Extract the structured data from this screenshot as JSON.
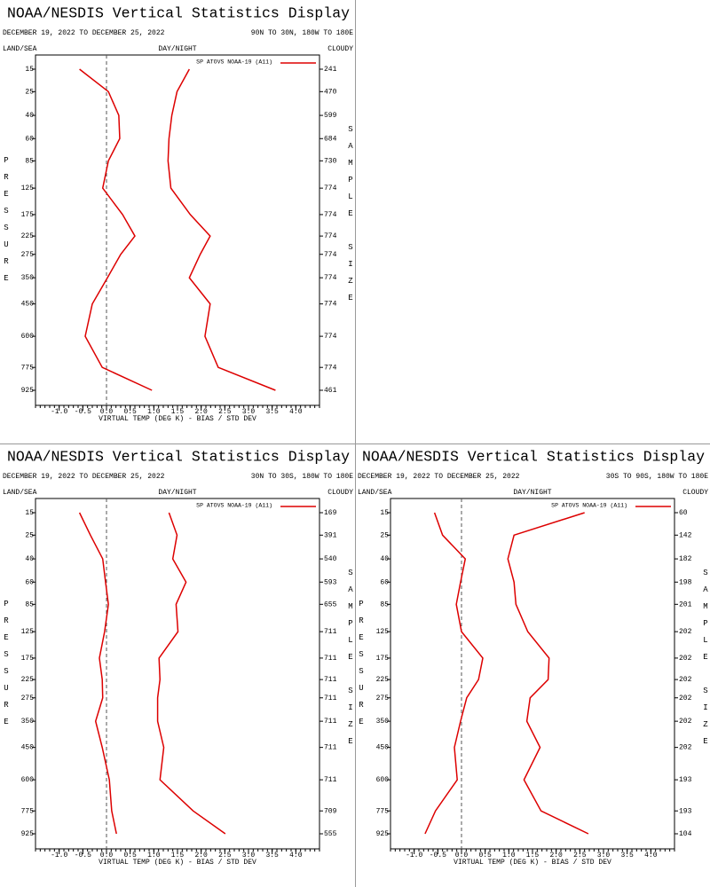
{
  "chart_data": [
    {
      "type": "line",
      "title": "NOAA/NESDIS Vertical Statistics Display",
      "date_range": "DECEMBER 19, 2022 TO DECEMBER 25, 2022",
      "region": "90N TO 30N, 180W TO 180E",
      "headers": [
        "LAND/SEA",
        "DAY/NIGHT",
        "CLOUDY"
      ],
      "y_label": "PRESSURE",
      "y2_label": "SAMPLE SIZE",
      "x_label": "VIRTUAL TEMP (DEG K) - BIAS / STD DEV",
      "levels": [
        15,
        25,
        40,
        60,
        85,
        125,
        175,
        225,
        275,
        350,
        450,
        600,
        775,
        925
      ],
      "sample_size": [
        241,
        470,
        599,
        684,
        730,
        774,
        774,
        774,
        774,
        774,
        774,
        774,
        774,
        461
      ],
      "series": [
        {
          "name": "SP ATOVS NOAA-19 (A11)",
          "color": "#dd0000",
          "bias": [
            -0.57,
            0.04,
            0.26,
            0.28,
            0.04,
            -0.08,
            0.34,
            0.6,
            0.3,
            0.02,
            -0.3,
            -0.45,
            -0.09,
            0.96
          ],
          "std_dev": [
            1.75,
            1.49,
            1.38,
            1.32,
            1.3,
            1.36,
            1.77,
            2.19,
            1.98,
            1.75,
            2.19,
            2.08,
            2.36,
            3.57
          ]
        }
      ],
      "xlim": [
        -1.5,
        4.5
      ],
      "xticks": [
        {
          "value": -1,
          "label": "-1.0"
        },
        -0.5,
        {
          "value": 0,
          "label": "0.0"
        },
        0.5,
        {
          "value": 1,
          "label": "1.0"
        },
        1.5,
        {
          "value": 2,
          "label": "2.0"
        },
        2.5,
        {
          "value": 3,
          "label": "3.0"
        },
        3.5,
        {
          "value": 4,
          "label": "4.0"
        }
      ]
    },
    {
      "type": "line",
      "title": "NOAA/NESDIS Vertical Statistics Display",
      "date_range": "DECEMBER 19, 2022 TO DECEMBER 25, 2022",
      "region": "30N TO 30S, 180W TO 180E",
      "headers": [
        "LAND/SEA",
        "DAY/NIGHT",
        "CLOUDY"
      ],
      "y_label": "PRESSURE",
      "y2_label": "SAMPLE SIZE",
      "x_label": "VIRTUAL TEMP (DEG K) - BIAS / STD DEV",
      "levels": [
        15,
        25,
        40,
        60,
        85,
        125,
        175,
        225,
        275,
        350,
        450,
        600,
        775,
        925
      ],
      "sample_size": [
        169,
        391,
        540,
        593,
        655,
        711,
        711,
        711,
        711,
        711,
        711,
        711,
        709,
        555
      ],
      "series": [
        {
          "name": "SP ATOVS NOAA-19 (A11)",
          "color": "#dd0000",
          "bias": [
            -0.57,
            -0.34,
            -0.08,
            -0.02,
            0.04,
            -0.04,
            -0.15,
            -0.09,
            -0.08,
            -0.23,
            -0.09,
            0.06,
            0.11,
            0.21
          ],
          "std_dev": [
            1.32,
            1.49,
            1.4,
            1.68,
            1.47,
            1.51,
            1.11,
            1.13,
            1.08,
            1.08,
            1.21,
            1.13,
            1.83,
            2.51
          ]
        }
      ],
      "xlim": [
        -1.5,
        4.5
      ],
      "xticks": [
        {
          "value": -1,
          "label": "-1.0"
        },
        -0.5,
        {
          "value": 0,
          "label": "0.0"
        },
        0.5,
        {
          "value": 1,
          "label": "1.0"
        },
        1.5,
        {
          "value": 2,
          "label": "2.0"
        },
        2.5,
        {
          "value": 3,
          "label": "3.0"
        },
        3.5,
        {
          "value": 4,
          "label": "4.0"
        }
      ]
    },
    {
      "type": "line",
      "title": "NOAA/NESDIS Vertical Statistics Display",
      "date_range": "DECEMBER 19, 2022 TO DECEMBER 25, 2022",
      "region": "30S TO 90S, 180W TO 180E",
      "headers": [
        "LAND/SEA",
        "DAY/NIGHT",
        "CLOUDY"
      ],
      "y_label": "PRESSURE",
      "y2_label": "SAMPLE SIZE",
      "x_label": "VIRTUAL TEMP (DEG K) - BIAS / STD DEV",
      "levels": [
        15,
        25,
        40,
        60,
        85,
        125,
        175,
        225,
        275,
        350,
        450,
        600,
        775,
        925
      ],
      "sample_size": [
        60,
        142,
        182,
        198,
        201,
        202,
        202,
        202,
        202,
        202,
        202,
        193,
        193,
        104
      ],
      "series": [
        {
          "name": "SP ATOVS NOAA-19 (A11)",
          "color": "#dd0000",
          "bias": [
            -0.57,
            -0.4,
            0.08,
            -0.02,
            -0.11,
            0,
            0.45,
            0.36,
            0.11,
            -0.02,
            -0.15,
            -0.09,
            -0.55,
            -0.77
          ],
          "std_dev": [
            2.6,
            1.11,
            0.98,
            1.11,
            1.15,
            1.4,
            1.85,
            1.83,
            1.45,
            1.38,
            1.66,
            1.32,
            1.68,
            2.68
          ]
        }
      ],
      "xlim": [
        -1.5,
        4.5
      ],
      "xticks": [
        {
          "value": -1,
          "label": "-1.0"
        },
        -0.5,
        {
          "value": 0,
          "label": "0.0"
        },
        0.5,
        {
          "value": 1,
          "label": "1.0"
        },
        1.5,
        {
          "value": 2,
          "label": "2.0"
        },
        2.5,
        {
          "value": 3,
          "label": "3.0"
        },
        3.5,
        {
          "value": 4,
          "label": "4.0"
        }
      ]
    }
  ]
}
